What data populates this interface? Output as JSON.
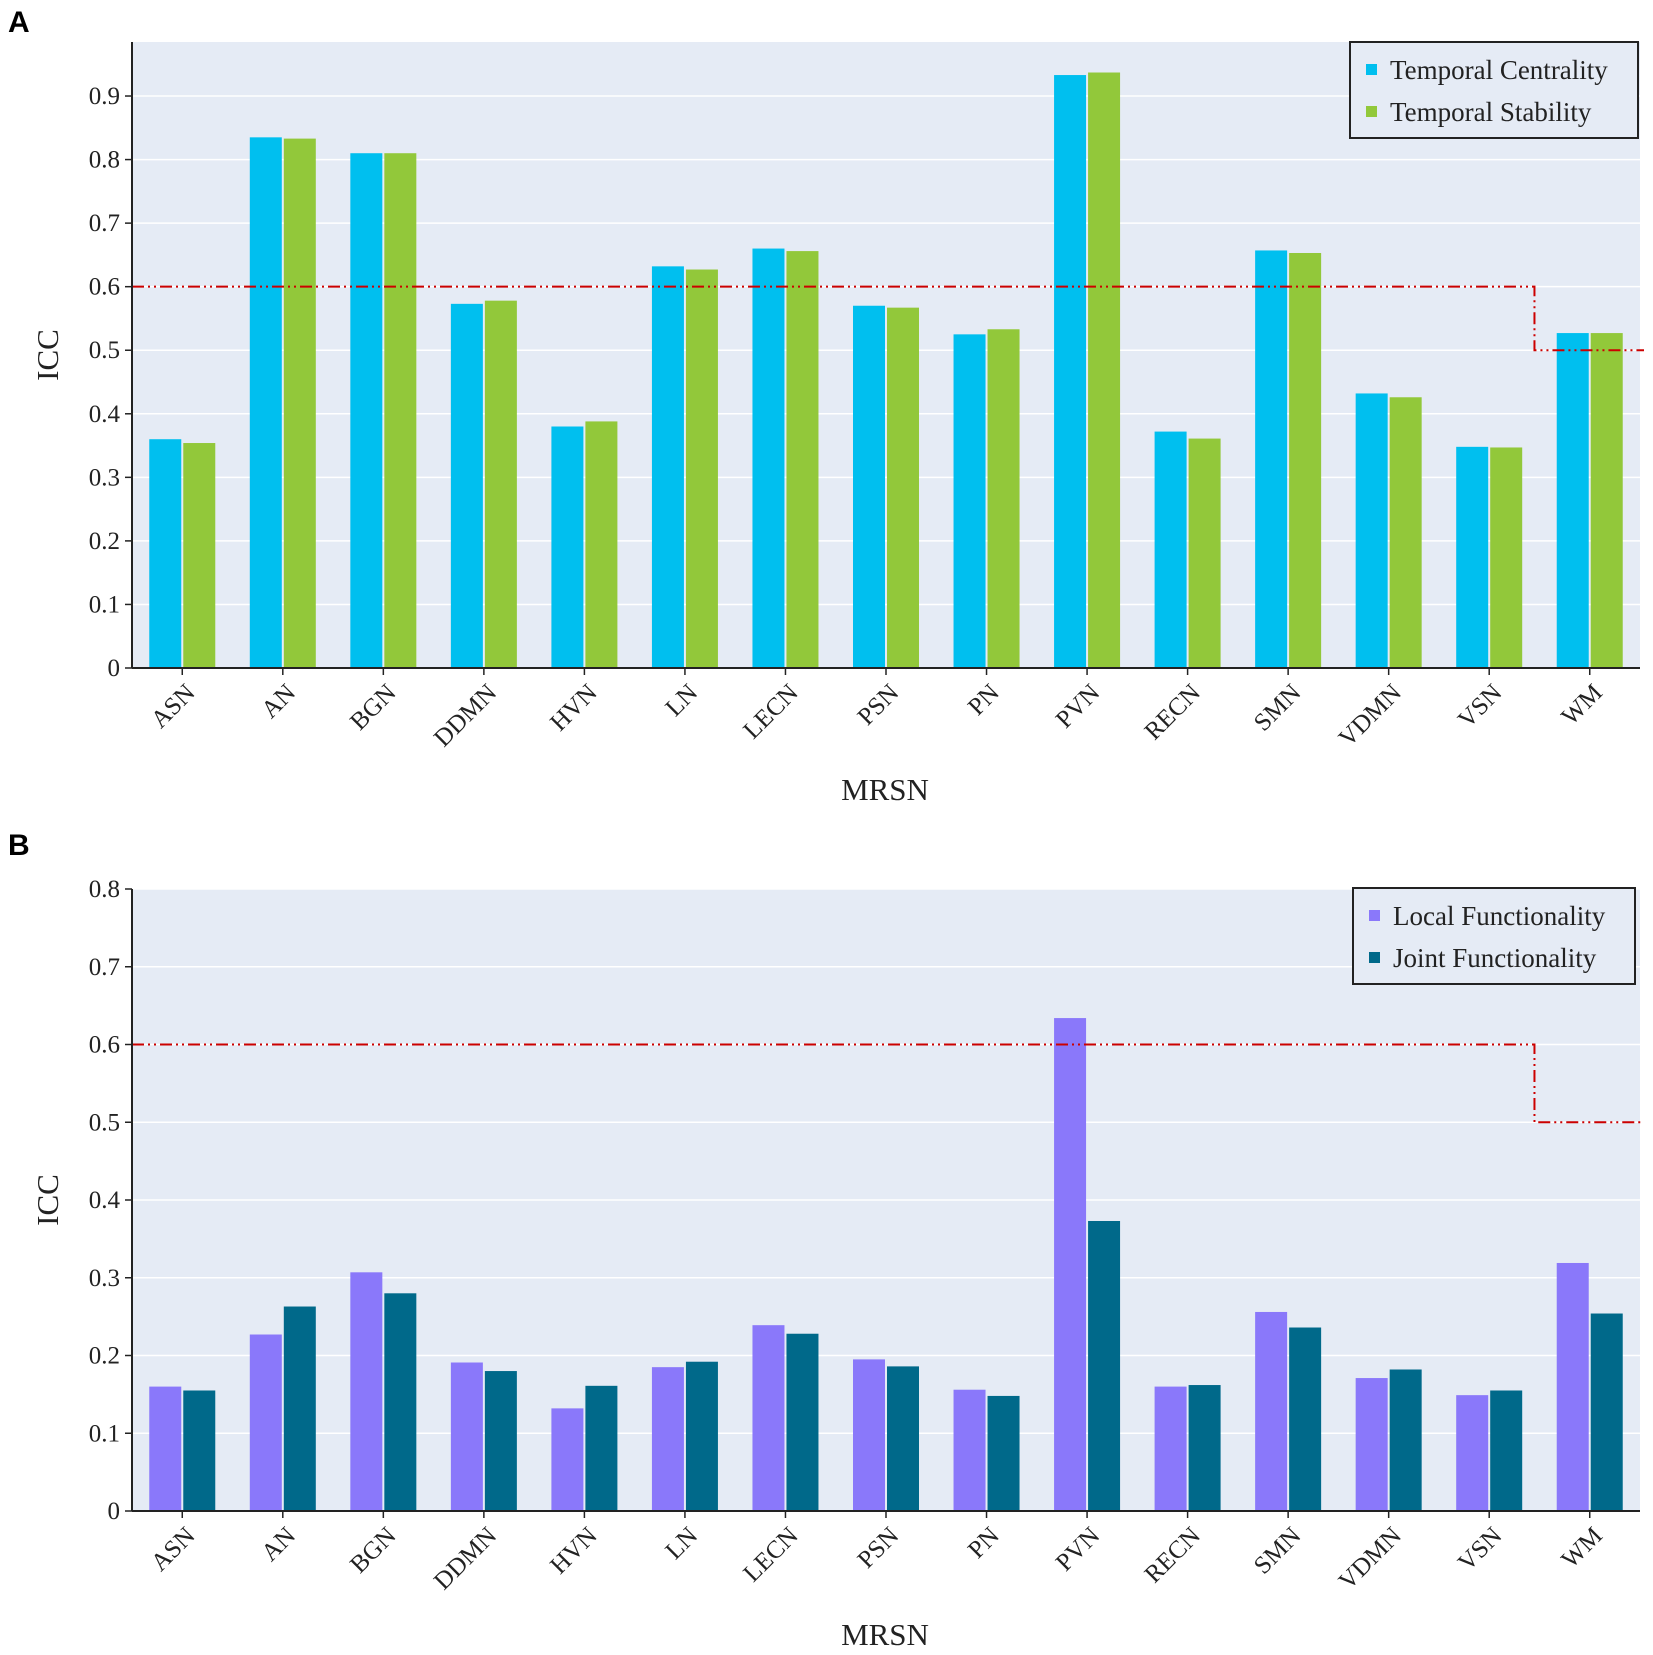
{
  "chart_data": [
    {
      "panel": "A",
      "type": "bar",
      "xlabel": "MRSN",
      "ylabel": "ICC",
      "ylim": [
        0,
        0.985
      ],
      "yticks": [
        "0",
        "0.1",
        "0.2",
        "0.3",
        "0.4",
        "0.5",
        "0.6",
        "0.7",
        "0.8",
        "0.9"
      ],
      "grid": true,
      "legend_position": "top-right",
      "categories": [
        "ASN",
        "AN",
        "BGN",
        "DDMN",
        "HVN",
        "LN",
        "LECN",
        "PSN",
        "PN",
        "PVN",
        "RECN",
        "SMN",
        "VDMN",
        "VSN",
        "WM"
      ],
      "series": [
        {
          "name": "Temporal Centrality",
          "color": "#00bfef",
          "values": [
            0.36,
            0.835,
            0.81,
            0.573,
            0.38,
            0.632,
            0.66,
            0.57,
            0.525,
            0.933,
            0.372,
            0.657,
            0.432,
            0.348,
            0.527
          ]
        },
        {
          "name": "Temporal Stability",
          "color": "#92c83a",
          "values": [
            0.354,
            0.833,
            0.81,
            0.578,
            0.388,
            0.627,
            0.656,
            0.567,
            0.533,
            0.937,
            0.361,
            0.653,
            0.426,
            0.347,
            0.527
          ]
        }
      ],
      "threshold": {
        "color": "#cc0000",
        "steps": [
          {
            "value": 0.6
          },
          {
            "value": 0.5,
            "from_category": "WM"
          }
        ]
      }
    },
    {
      "panel": "B",
      "type": "bar",
      "xlabel": "MRSN",
      "ylabel": "ICC",
      "ylim": [
        0,
        0.8
      ],
      "yticks": [
        "0",
        "0.1",
        "0.2",
        "0.3",
        "0.4",
        "0.5",
        "0.6",
        "0.7",
        "0.8"
      ],
      "grid": true,
      "legend_position": "top-right",
      "categories": [
        "ASN",
        "AN",
        "BGN",
        "DDMN",
        "HVN",
        "LN",
        "LECN",
        "PSN",
        "PN",
        "PVN",
        "RECN",
        "SMN",
        "VDMN",
        "VSN",
        "WM"
      ],
      "series": [
        {
          "name": "Local Functionality",
          "color": "#8a78fa",
          "values": [
            0.16,
            0.227,
            0.307,
            0.191,
            0.132,
            0.185,
            0.239,
            0.195,
            0.156,
            0.634,
            0.16,
            0.256,
            0.171,
            0.149,
            0.319
          ]
        },
        {
          "name": "Joint Functionality",
          "color": "#00698a",
          "values": [
            0.155,
            0.263,
            0.28,
            0.18,
            0.161,
            0.192,
            0.228,
            0.186,
            0.148,
            0.373,
            0.162,
            0.236,
            0.182,
            0.155,
            0.254
          ]
        }
      ],
      "threshold": {
        "color": "#cc0000",
        "steps": [
          {
            "value": 0.6
          },
          {
            "value": 0.5,
            "from_category": "WM"
          }
        ]
      }
    }
  ]
}
